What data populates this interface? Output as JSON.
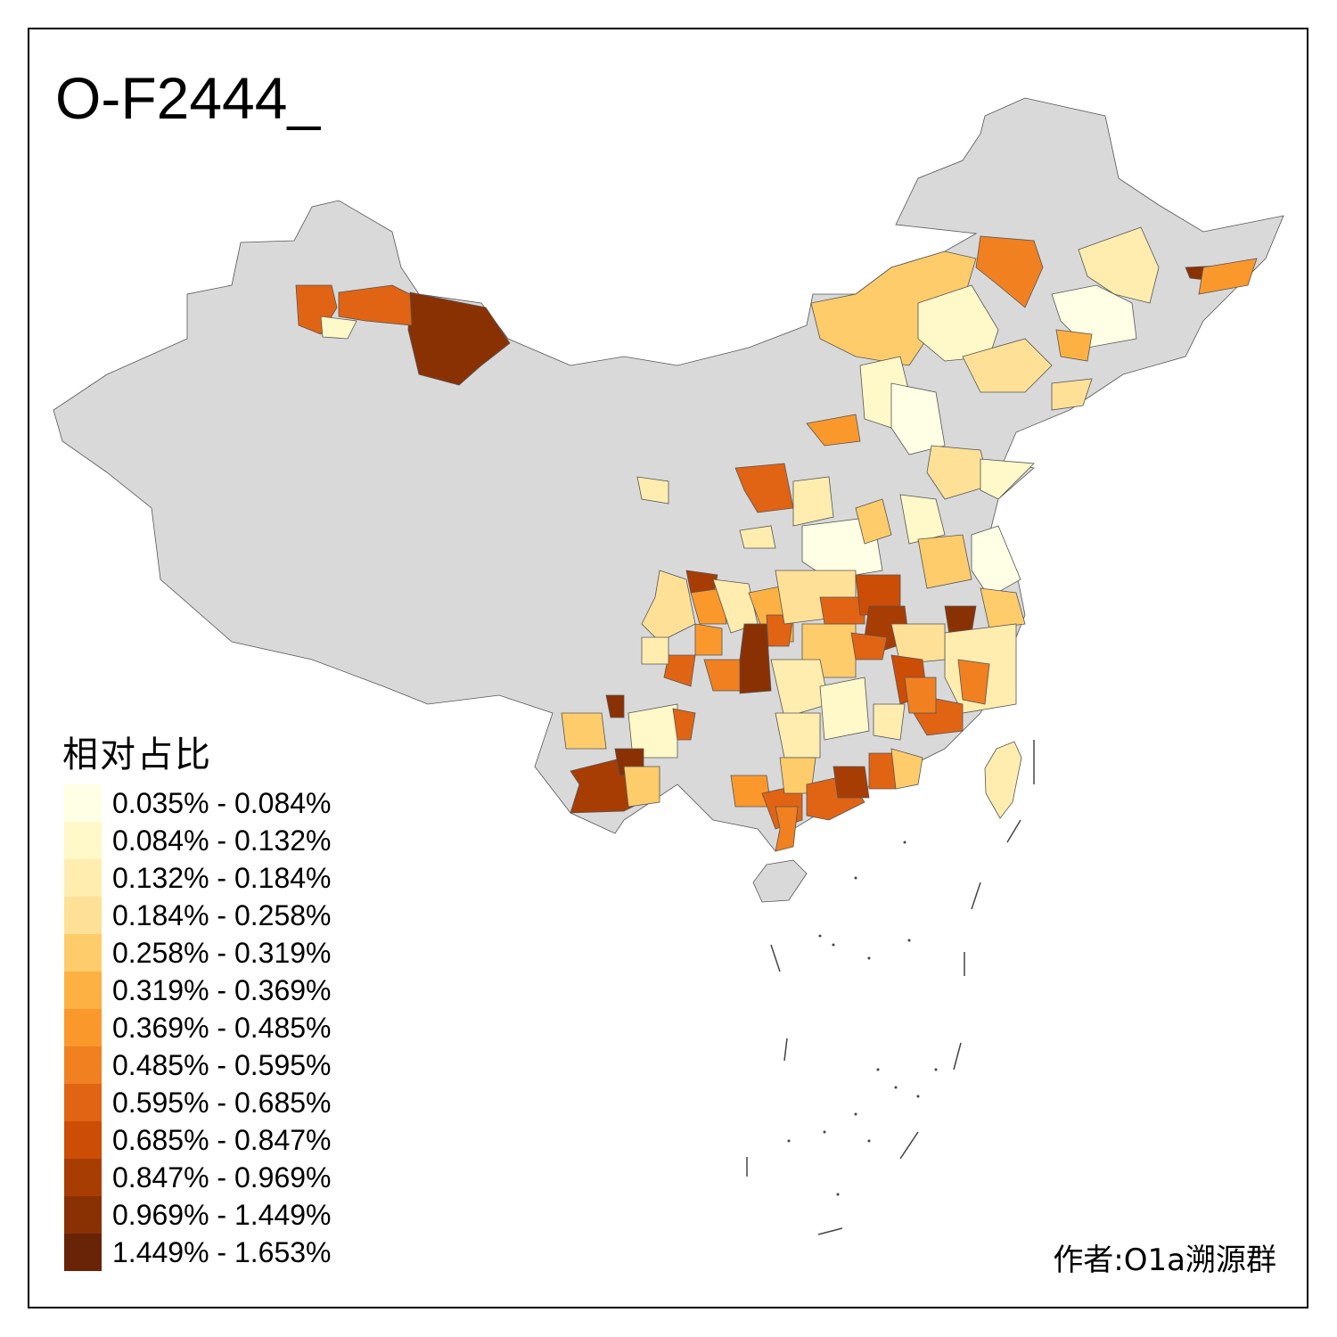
{
  "title": "O-F2444_",
  "legend": {
    "title": "相对占比",
    "classes": [
      {
        "label": "0.035% - 0.084%",
        "color": "#FFFFE5"
      },
      {
        "label": "0.084% - 0.132%",
        "color": "#FFF8C8"
      },
      {
        "label": "0.132% - 0.184%",
        "color": "#FEEDAE"
      },
      {
        "label": "0.184% - 0.258%",
        "color": "#FEE097"
      },
      {
        "label": "0.258% - 0.319%",
        "color": "#FECC6A"
      },
      {
        "label": "0.319% - 0.369%",
        "color": "#FCB142"
      },
      {
        "label": "0.369% - 0.485%",
        "color": "#FB982B"
      },
      {
        "label": "0.485% - 0.595%",
        "color": "#F08020"
      },
      {
        "label": "0.595% - 0.685%",
        "color": "#E06414"
      },
      {
        "label": "0.685% - 0.847%",
        "color": "#CC4D05"
      },
      {
        "label": "0.847% - 0.969%",
        "color": "#A83D04"
      },
      {
        "label": "0.969% - 1.449%",
        "color": "#8A3104"
      },
      {
        "label": "1.449% - 1.653%",
        "color": "#692306"
      }
    ]
  },
  "no_data_color": "#D9D9D9",
  "author": "作者:O1a溯源群"
}
